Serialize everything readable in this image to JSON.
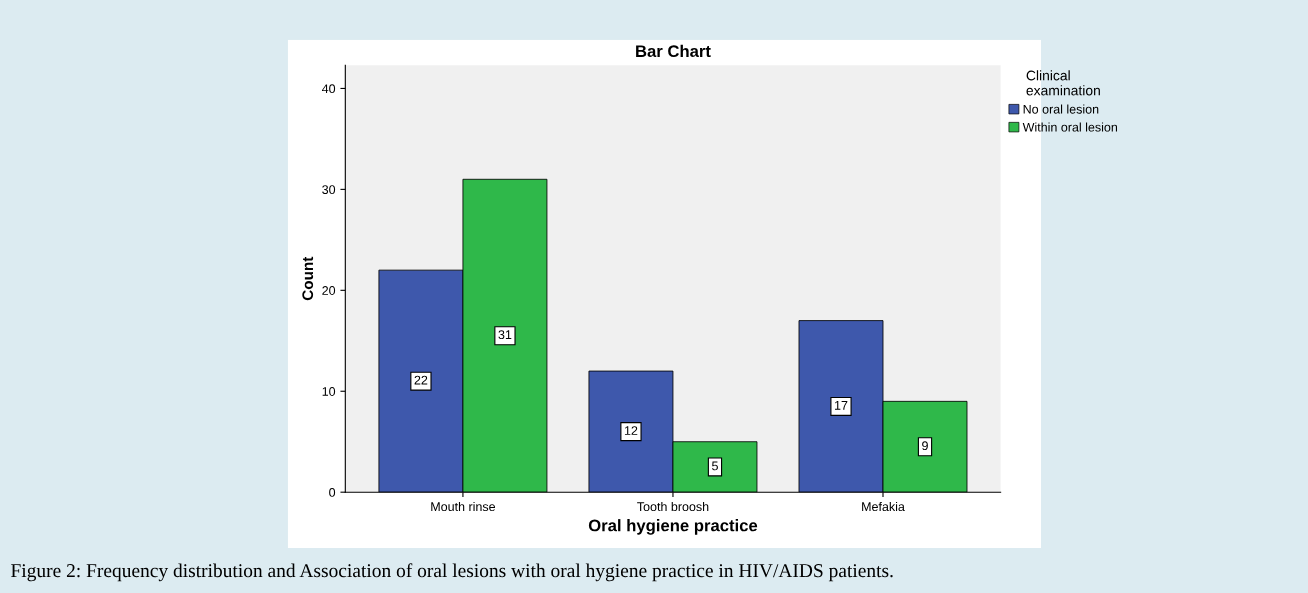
{
  "chart_data": {
    "type": "bar",
    "title": "Bar Chart",
    "xlabel": "Oral hygiene practice",
    "ylabel": "Count",
    "legend_title": "Clinical\nexamination",
    "categories": [
      "Mouth rinse",
      "Tooth broosh",
      "Mefakia"
    ],
    "series": [
      {
        "name": "No oral lesion",
        "color": "#3e58ac",
        "values": [
          22,
          12,
          17
        ]
      },
      {
        "name": "Within oral lesion",
        "color": "#2fb84a",
        "values": [
          31,
          5,
          9
        ]
      }
    ],
    "ylim": [
      0,
      42.3
    ],
    "yticks": [
      0,
      10,
      20,
      30,
      40
    ],
    "data_labels": true,
    "legend": "top right",
    "grid": false,
    "annotations": [
      "Figure 2: Frequency distribution and Association of oral lesions with oral hygiene practice in HIV/AIDS patients."
    ]
  }
}
